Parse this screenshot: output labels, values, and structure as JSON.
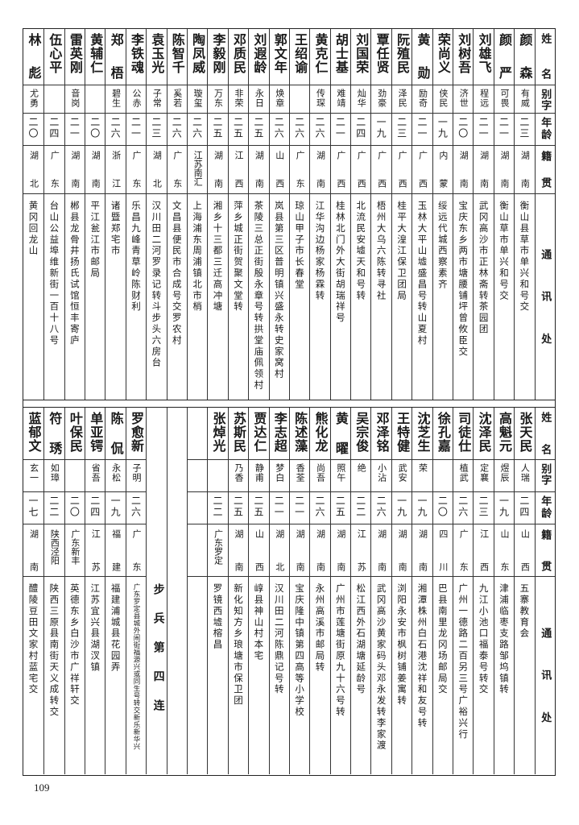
{
  "header": {
    "name": "姓名",
    "alias": "别字",
    "age": "年龄",
    "origin": "籍贯",
    "address": "通讯处"
  },
  "top": {
    "rows": [
      {
        "name": "颜森",
        "alias": "有威",
        "age": "二三",
        "origin": "湖南",
        "address": "衡山县草市单兴和号交"
      },
      {
        "name": "颜严",
        "alias": "可畏",
        "age": "二一",
        "origin": "湖南",
        "address": "衡山草市单兴和号交"
      },
      {
        "name": "刘雄飞",
        "alias": "程远",
        "age": "二一",
        "origin": "湖南",
        "address": "武冈高沙市正林斋转茶园团"
      },
      {
        "name": "刘树吾",
        "alias": "济世",
        "age": "二〇",
        "origin": "湖南",
        "address": "宝庆东乡两市塘腰铺坪曾攸臣交"
      },
      {
        "name": "荣尚义",
        "alias": "侠民",
        "age": "一九",
        "origin": "内蒙",
        "address": "绥远代城西察素齐"
      },
      {
        "name": "黄勋",
        "alias": "励奇",
        "age": "二一",
        "origin": "广西",
        "address": "玉林大平山墟盛昌号转山夏村"
      },
      {
        "name": "阮殖民",
        "alias": "泽民",
        "age": "二三",
        "origin": "广西",
        "address": "桂平大湟江保卫团局"
      },
      {
        "name": "覃任贤",
        "alias": "劲豪",
        "age": "一九",
        "origin": "广西",
        "address": "梧州大乌六陈转寻社"
      },
      {
        "name": "刘国荣",
        "alias": "灿华",
        "age": "二四",
        "origin": "广西",
        "address": "北流民安墟天和号转"
      },
      {
        "name": "胡士基",
        "alias": "难靖",
        "age": "二一",
        "origin": "广西",
        "address": "桂林北门外大街胡瑞祥号"
      },
      {
        "name": "黄克仁",
        "alias": "传琛",
        "age": "二六",
        "origin": "湖南",
        "address": "江华沟边杨家杨霖转"
      },
      {
        "name": "王绍谕",
        "alias": "",
        "age": "二六",
        "origin": "广东",
        "address": "琼山甲子市长春堂"
      },
      {
        "name": "郭文年",
        "alias": "焕章",
        "age": "二六",
        "origin": "山西",
        "address": "岚县第三区普明镇兴盛永转史家窝村"
      },
      {
        "name": "刘遐龄",
        "alias": "永日",
        "age": "二五",
        "origin": "湖南",
        "address": "茶陵三总正街殷永章号转拱堂庙佩领村"
      },
      {
        "name": "邓质民",
        "alias": "非荣",
        "age": "二五",
        "origin": "江西",
        "address": "萍乡城正街贺聚文堂转"
      },
      {
        "name": "李毅刚",
        "alias": "万东",
        "age": "二五",
        "origin": "湖南",
        "address": "湘乡十三都三迁高冲塘"
      },
      {
        "name": "陶凤威",
        "alias": "璇玺",
        "age": "二六",
        "origin": "江苏南汇",
        "address": "上海浦东周浦镇北市梢"
      },
      {
        "name": "陈智千",
        "alias": "奚若",
        "age": "二六",
        "origin": "广东",
        "address": "文昌县便民市合成号交罗农村"
      },
      {
        "name": "袁玉光",
        "alias": "子常",
        "age": "二三",
        "origin": "湖北",
        "address": "汉川田二河罗录记转斗步头六房台"
      },
      {
        "name": "李铁魂",
        "alias": "公赤",
        "age": "二一",
        "origin": "广东",
        "address": "乐昌九峰青草岭陈财利"
      },
      {
        "name": "郑梧",
        "alias": "碧生",
        "age": "二六",
        "origin": "浙江",
        "address": "诸暨郑宅市"
      },
      {
        "name": "黄辅仁",
        "alias": "",
        "age": "二〇",
        "origin": "湖南",
        "address": "平江瓮江市邮局"
      },
      {
        "name": "雷英刚",
        "alias": "音岗",
        "age": "二一",
        "origin": "湖南",
        "address": "郴县龙骨井扬氏试馆恒丰寄庐"
      },
      {
        "name": "伍心平",
        "alias": "",
        "age": "二四",
        "origin": "广东",
        "address": "台山公益埠维新街一百十八号"
      },
      {
        "name": "林彪",
        "alias": "尤勇",
        "age": "二〇",
        "origin": "湖北",
        "address": "黄冈回龙山"
      }
    ]
  },
  "bottom": {
    "rows_right": [
      {
        "name": "张天民",
        "alias": "人瑞",
        "age": "二四",
        "origin": "山西",
        "address": "五寨教育会"
      },
      {
        "name": "高魁元",
        "alias": "煜辰",
        "age": "一九",
        "origin": "山东",
        "address": "津浦临枣支路邹坞镇转"
      },
      {
        "name": "沈泽民",
        "alias": "定襄",
        "age": "二三",
        "origin": "江西",
        "address": "九江小池口福泰号转交"
      },
      {
        "name": "司徒仕",
        "alias": "植武",
        "age": "二六",
        "origin": "广东",
        "address": "广州一德路二百另三号广裕兴行"
      },
      {
        "name": "徐孔嘉",
        "alias": "",
        "age": "二〇",
        "origin": "四川",
        "address": "巴县南里龙冈场邮局交"
      },
      {
        "name": "沈芝生",
        "alias": "荣",
        "age": "一九",
        "origin": "湖南",
        "address": "湘潭株州白石港沈祥和友号转"
      },
      {
        "name": "王特健",
        "alias": "武安",
        "age": "一九",
        "origin": "湖南",
        "address": "浏阳永安市枫树铺姜寓转"
      },
      {
        "name": "邓泽铭",
        "alias": "小沾",
        "age": "二六",
        "origin": "湖南",
        "address": "武冈高沙黄家码头邓永发转李家渡"
      },
      {
        "name": "吴宗俊",
        "alias": "绝",
        "age": "二二",
        "origin": "江苏",
        "address": "松江西外石湖塘延龄号"
      },
      {
        "name": "黄曜",
        "alias": "照午",
        "age": "二五",
        "origin": "湖南",
        "address": "广州市莲塘街原九十六号转"
      },
      {
        "name": "熊化龙",
        "alias": "尚吾",
        "age": "二六",
        "origin": "湖南",
        "address": "永州高溪市邮局转"
      },
      {
        "name": "陈述藻",
        "alias": "香荃",
        "age": "二一",
        "origin": "湖南",
        "address": "宝庆隆中镇第四高等小学校"
      },
      {
        "name": "李志超",
        "alias": "梦白",
        "age": "二一",
        "origin": "湖北",
        "address": "汉川田二河陈鼎记号转"
      },
      {
        "name": "贾达仁",
        "alias": "静甫",
        "age": "二五",
        "origin": "山西",
        "address": "崞县神山村本宅"
      },
      {
        "name": "苏斯民",
        "alias": "乃香",
        "age": "二五",
        "origin": "湖南",
        "address": "新化知方乡琅塘市保卫团"
      },
      {
        "name": "张焯光",
        "alias": "",
        "age": "二二",
        "origin": "广东罗定",
        "address": "罗镜西墟榕昌"
      }
    ],
    "section_label": "步兵第四连",
    "rows_left": [
      {
        "name": "罗愈新",
        "alias": "子明",
        "age": "二六",
        "origin": "广东",
        "address": "广东罗定县城外闹街福源兴或同生号转交新乐新华兴"
      },
      {
        "name": "陈侃",
        "alias": "永松",
        "age": "一九",
        "origin": "福建",
        "address": "福建浦城县花园弄"
      },
      {
        "name": "单亚锷",
        "alias": "省吾",
        "age": "二四",
        "origin": "江苏",
        "address": "江苏宜兴县湖汊镇"
      },
      {
        "name": "叶保民",
        "alias": "",
        "age": "二〇",
        "origin": "广东新丰",
        "address": "英德东乡白沙市广祥轩交"
      },
      {
        "name": "符琇",
        "alias": "如璋",
        "age": "二二",
        "origin": "陕西泾阳",
        "address": "陕西三原县南街天义成转交"
      },
      {
        "name": "蓝郁文",
        "alias": "玄一",
        "age": "一七",
        "origin": "湖南",
        "address": "醴陵豆田文家村蓝宅交"
      }
    ]
  },
  "page_number": "109"
}
